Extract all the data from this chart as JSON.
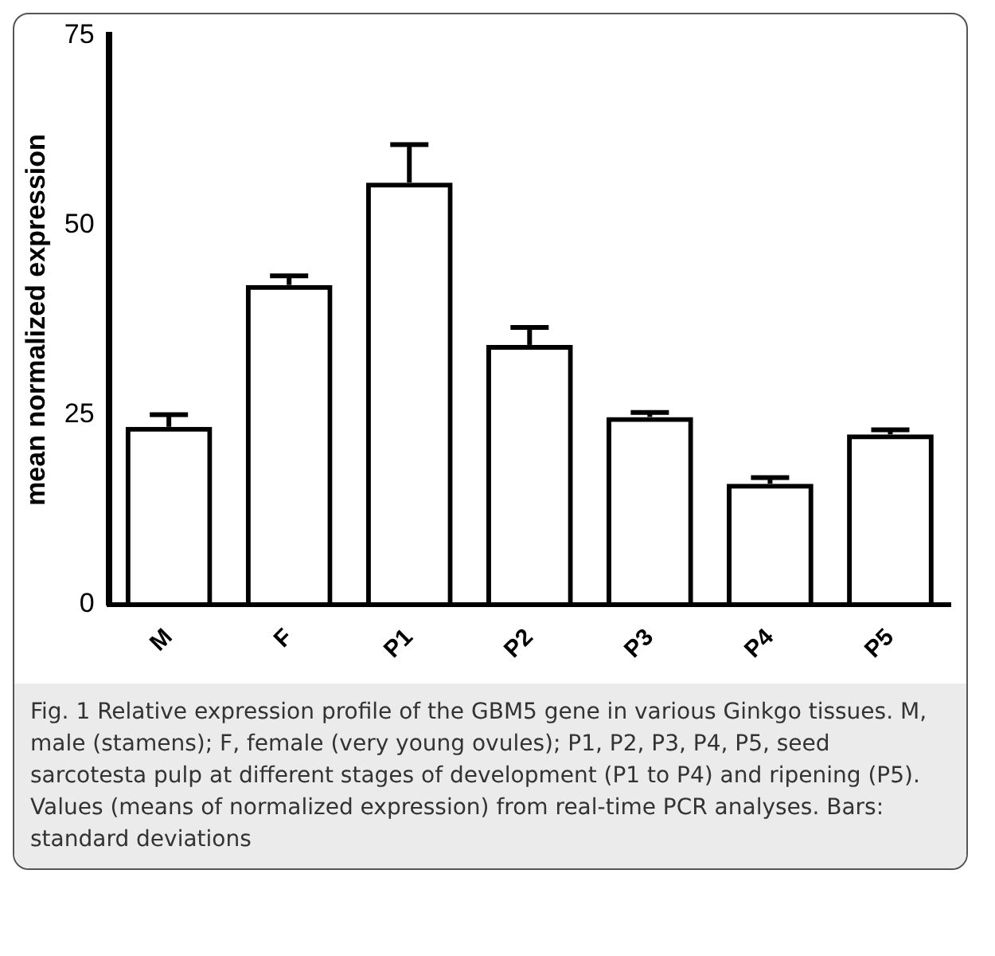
{
  "chart_data": {
    "type": "bar",
    "ylabel": "mean normalized expression",
    "categories": [
      "M",
      "F",
      "P1",
      "P2",
      "P3",
      "P4",
      "P5"
    ],
    "values": [
      23.4,
      42.1,
      55.6,
      34.2,
      24.7,
      15.9,
      22.4
    ],
    "errors": [
      [
        23.4,
        25.0
      ],
      [
        42.1,
        43.3
      ],
      [
        55.6,
        60.6
      ],
      [
        34.2,
        36.5
      ],
      [
        24.7,
        25.3
      ],
      [
        15.9,
        16.7
      ],
      [
        22.4,
        23.0
      ]
    ],
    "color": "#000000",
    "ylim": [
      0,
      75
    ],
    "yticks": [
      0,
      25,
      50,
      75
    ],
    "grid": false,
    "legend": false,
    "annotations": [
      "Fig. 1 Relative expression profile of the GBM5 gene in various Ginkgo tissues. M, male (stamens); F, female (very young ovules); P1, P2, P3, P4, P5, seed sarcotesta pulp at different stages of development (P1 to P4) and ripening (P5). Values (means of normalized expression) from real-time PCR analyses. Bars: standard deviations"
    ]
  }
}
